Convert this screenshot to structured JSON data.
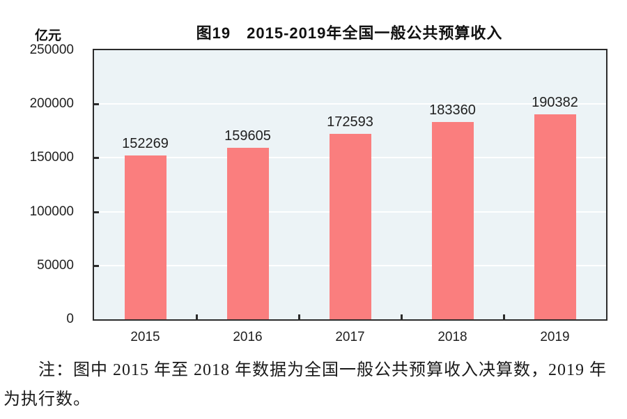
{
  "figure": {
    "title": "图19　2015-2019年全国一般公共预算收入",
    "unit_label": "亿元",
    "note_line1": "注：图中 2015 年至 2018 年数据为全国一般公共预算收入决算数，2019 年",
    "note_line2": "为执行数。"
  },
  "chart_data": {
    "type": "bar",
    "title": "图19　2015-2019年全国一般公共预算收入",
    "unit": "亿元",
    "categories": [
      "2015",
      "2016",
      "2017",
      "2018",
      "2019"
    ],
    "values": [
      152269,
      159605,
      172593,
      183360,
      190382
    ],
    "data_labels": [
      152269,
      159605,
      172593,
      183360,
      190382
    ],
    "xlabel": "",
    "ylabel": "亿元",
    "ylim": [
      0,
      250000
    ],
    "yticks": [
      0,
      50000,
      100000,
      150000,
      200000,
      250000
    ],
    "grid": true,
    "legend": "none",
    "note": "注：图中 2015 年至 2018 年数据为全国一般公共预算收入决算数，2019 年为执行数。",
    "colors": {
      "bar": "#FA7E7E",
      "plot_background": "#ECF3F6",
      "gridline": "#FFFFFF",
      "frame": "#2B2B2B",
      "text": "#1F1F1F"
    }
  }
}
